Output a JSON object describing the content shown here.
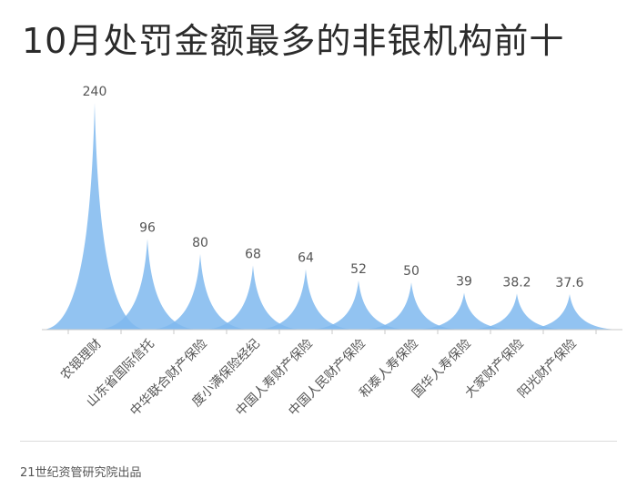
{
  "title": "10月处罚金额最多的非银机构前十",
  "source": "21世纪资管研究院出品",
  "colors": {
    "spike": "#7fb9ee",
    "axis": "#c9c9c9",
    "label": "#555555"
  },
  "chart_data": {
    "type": "area",
    "categories": [
      "农银理财",
      "山东省国际信托",
      "中华联合财产保险",
      "度小满保险经纪",
      "中国人寿财产保险",
      "中国人民财产保险",
      "和泰人寿保险",
      "国华人寿保险",
      "大家财产保险",
      "阳光财产保险"
    ],
    "values": [
      240,
      96,
      80,
      68,
      64,
      52,
      50,
      39,
      38.2,
      37.6
    ],
    "value_labels": [
      "240",
      "96",
      "80",
      "68",
      "64",
      "52",
      "50",
      "39",
      "38.2",
      "37.6"
    ],
    "title": "10月处罚金额最多的非银机构前十",
    "xlabel": "",
    "ylabel": "",
    "ylim": [
      0,
      240
    ],
    "grid": false,
    "legend": "none"
  }
}
